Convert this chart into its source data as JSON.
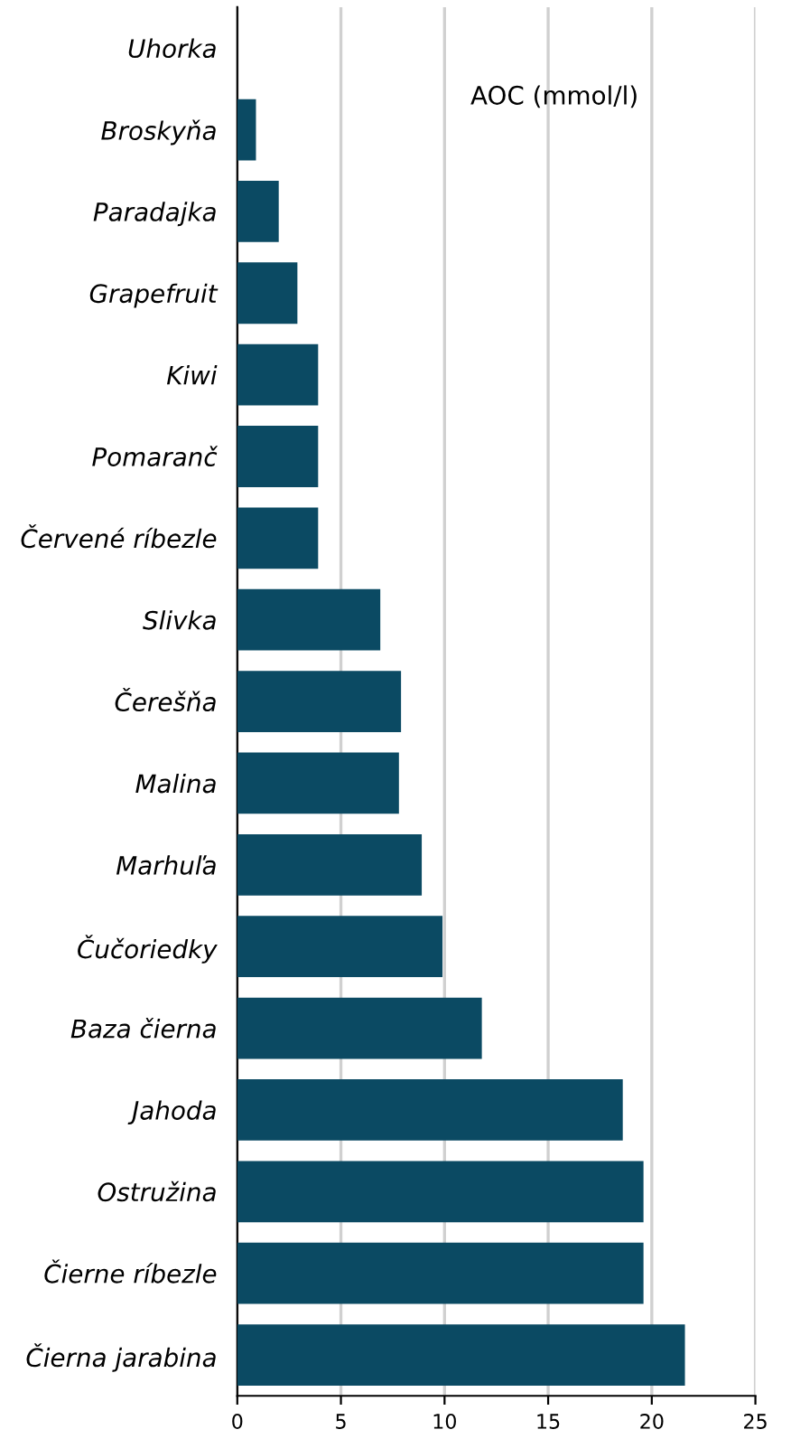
{
  "chart_data": {
    "type": "bar",
    "orientation": "horizontal",
    "title": "AOC (mmol/l)",
    "categories": [
      "Uhorka",
      "Broskyňa",
      "Paradajka",
      "Grapefruit",
      "Kiwi",
      "Pomaranč",
      "Červené ríbezle",
      "Slivka",
      "Čerešňa",
      "Malina",
      "Marhuľa",
      "Čučoriedky",
      "Baza čierna",
      "Jahoda",
      "Ostružina",
      "Čierne ríbezle",
      "Čierna jarabina"
    ],
    "values": [
      0,
      0.9,
      2.0,
      2.9,
      3.9,
      3.9,
      3.9,
      6.9,
      7.9,
      7.8,
      8.9,
      9.9,
      11.8,
      18.6,
      19.6,
      19.6,
      21.6
    ],
    "color": "#0b4a63",
    "xlim": [
      0,
      25
    ],
    "xticks": [
      0,
      5,
      10,
      15,
      20,
      25
    ],
    "grid": "x",
    "legend": false
  }
}
